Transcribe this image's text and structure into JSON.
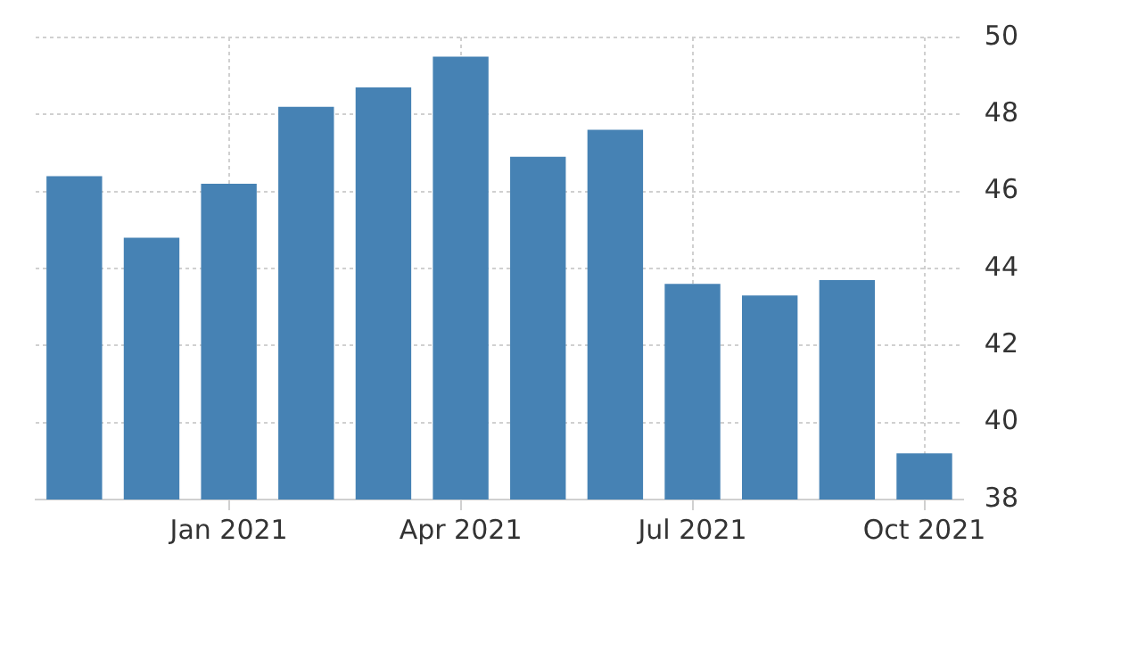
{
  "chart_data": {
    "type": "bar",
    "categories": [
      null,
      null,
      "Jan 2021",
      null,
      null,
      "Apr 2021",
      null,
      null,
      "Jul 2021",
      null,
      null,
      "Oct 2021"
    ],
    "values": [
      46.4,
      44.8,
      46.2,
      48.2,
      48.7,
      49.5,
      46.9,
      47.6,
      43.6,
      43.3,
      43.7,
      39.2
    ],
    "color": "#4682b4",
    "ylim": [
      38,
      50
    ],
    "yticks": [
      38,
      40,
      42,
      44,
      46,
      48,
      50
    ],
    "grid": true,
    "legend": false
  }
}
